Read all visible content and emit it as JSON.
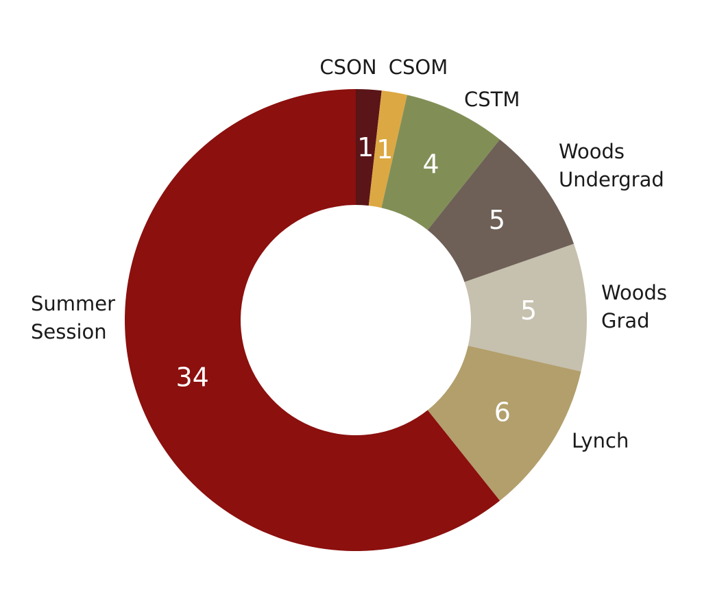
{
  "chart_data": {
    "type": "pie",
    "donut": true,
    "categories": [
      "CSON",
      "CSOM",
      "CSTM",
      "Woods Undergrad",
      "Woods Grad",
      "Lynch",
      "Summer Session"
    ],
    "values": [
      1,
      1,
      4,
      5,
      5,
      6,
      34
    ],
    "colors": [
      "#5a1518",
      "#dca843",
      "#818f57",
      "#6e6057",
      "#c6c0ae",
      "#b29f6c",
      "#8b100e"
    ],
    "label_lines": [
      [
        "CSON"
      ],
      [
        "CSOM"
      ],
      [
        "CSTM"
      ],
      [
        "Woods",
        "Undergrad"
      ],
      [
        "Woods",
        "Grad"
      ],
      [
        "Lynch"
      ],
      [
        "Summer",
        "Session"
      ]
    ],
    "title": "",
    "legend": "none"
  }
}
